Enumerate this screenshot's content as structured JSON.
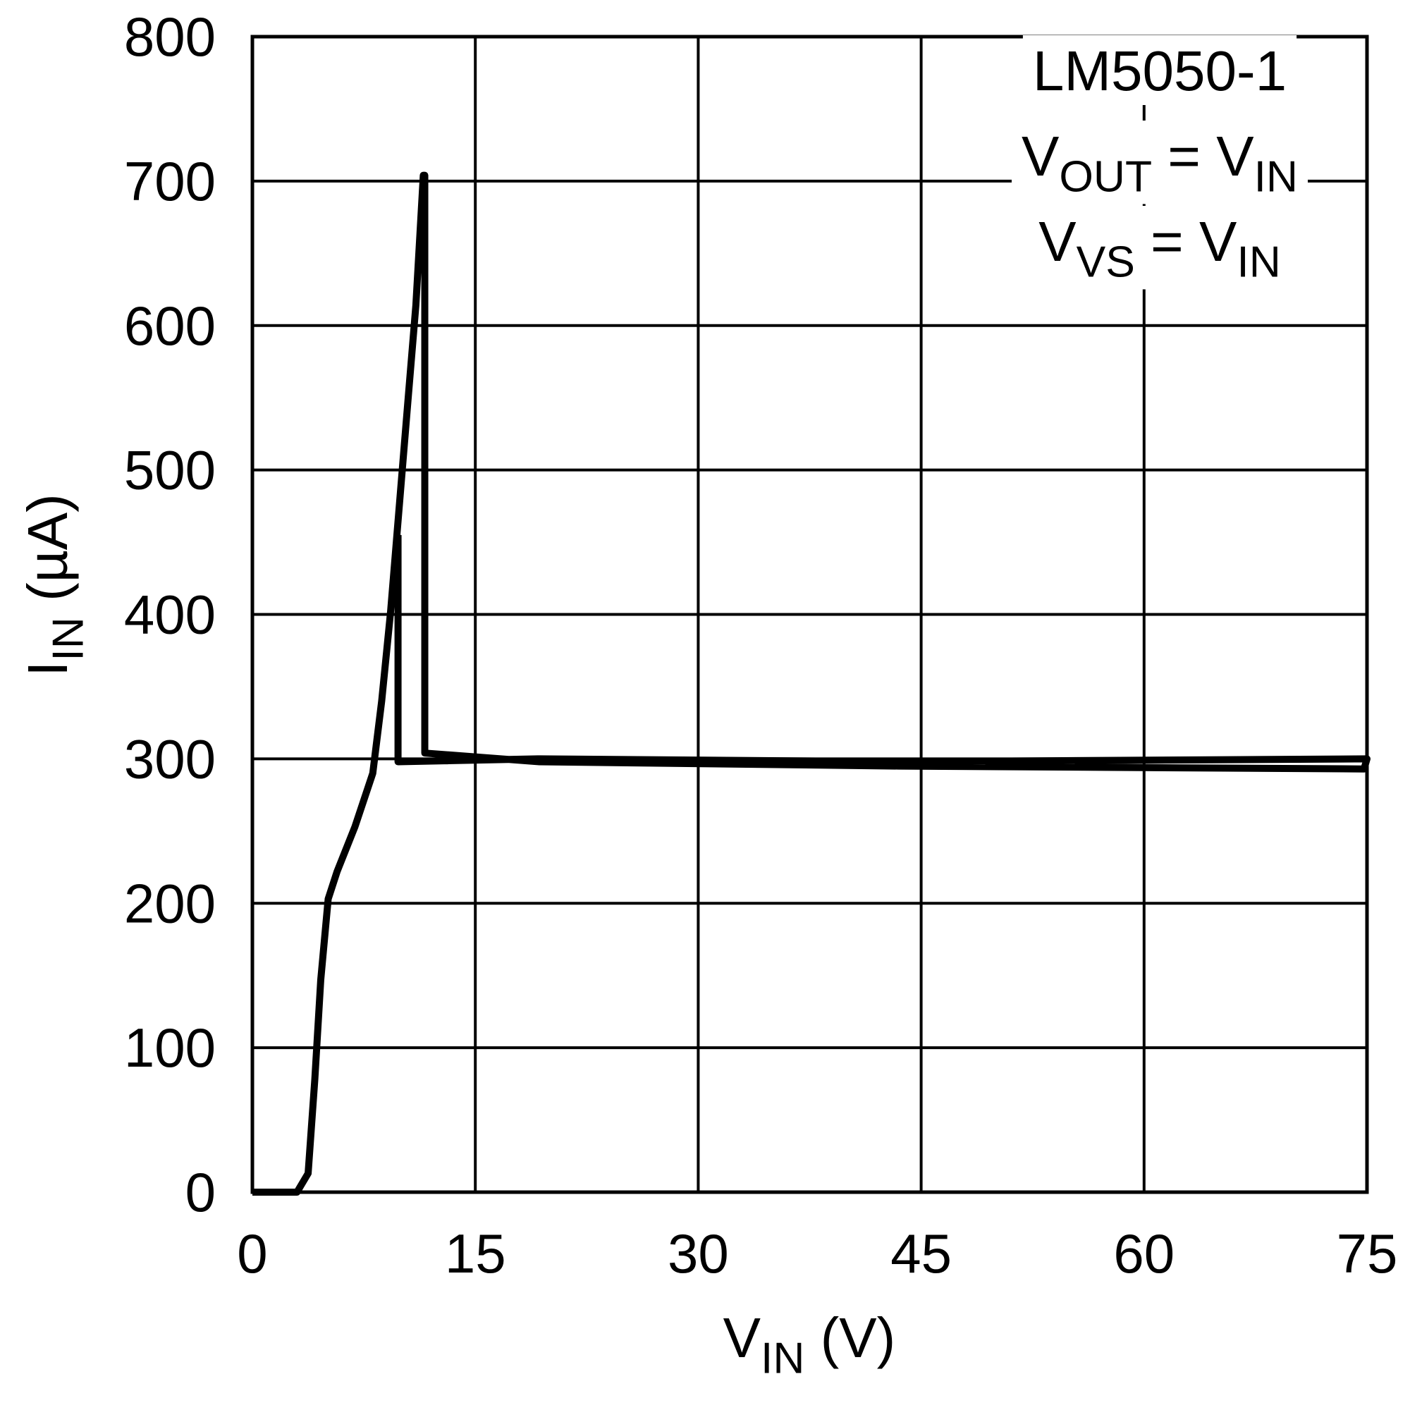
{
  "chart_data": {
    "type": "line",
    "xlabel": [
      {
        "t": "V"
      },
      {
        "sub": "IN"
      },
      {
        "t": " (V)"
      }
    ],
    "ylabel": [
      {
        "t": "I"
      },
      {
        "sub": "IN"
      },
      {
        "t": " (µA)"
      }
    ],
    "annotations": [
      [
        {
          "t": "LM5050-1"
        }
      ],
      [
        {
          "t": "V"
        },
        {
          "sub": "OUT"
        },
        {
          "t": " = V"
        },
        {
          "sub": "IN"
        }
      ],
      [
        {
          "t": "V"
        },
        {
          "sub": "VS"
        },
        {
          "t": " = V"
        },
        {
          "sub": "IN"
        }
      ]
    ],
    "xlim": [
      0,
      75
    ],
    "xticks": [
      0,
      15,
      30,
      45,
      60,
      75
    ],
    "ylim": [
      0,
      800
    ],
    "yticks": [
      0,
      100,
      200,
      300,
      400,
      500,
      600,
      700,
      800
    ],
    "grid": true,
    "series": [
      {
        "color": "#000000",
        "x": [
          0,
          3.0,
          3.75,
          4.2,
          4.6,
          5.1,
          5.7,
          6.9,
          8.1,
          8.7,
          9.3,
          9.9,
          10.5,
          11.0,
          11.5,
          11.6,
          11.6,
          19.3,
          43.5,
          74.8,
          75,
          43.5,
          19.3,
          9.8,
          9.8
        ],
        "values": [
          0,
          0,
          13,
          78,
          147,
          203,
          222,
          253,
          290,
          340,
          402,
          477,
          552,
          614,
          704,
          704,
          304,
          298,
          295,
          293,
          300,
          298,
          300,
          298,
          455
        ]
      }
    ]
  }
}
